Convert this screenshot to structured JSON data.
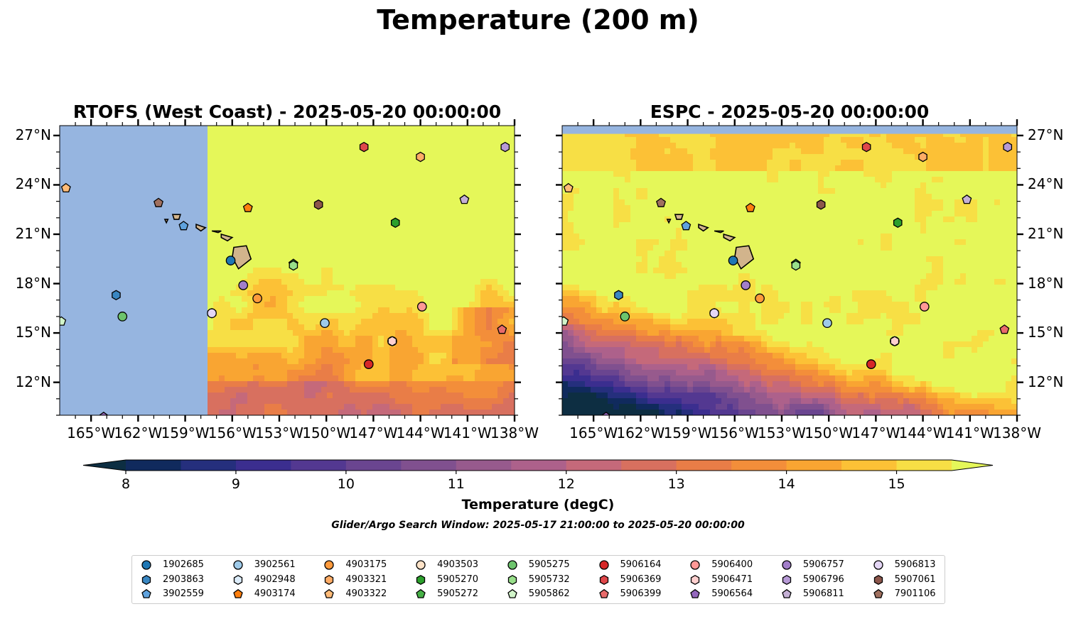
{
  "figure": {
    "title": "Temperature (200 m)",
    "search_window": "Glider/Argo Search Window: 2025-05-17 21:00:00 to 2025-05-20 00:00:00"
  },
  "panels": [
    {
      "title": "RTOFS (West Coast) - 2025-05-20 00:00:00",
      "land_mask_west_of": -157.5
    },
    {
      "title": "ESPC - 2025-05-20 00:00:00"
    }
  ],
  "map": {
    "lon_range": [
      -167.0,
      -138.0
    ],
    "lat_range": [
      10.0,
      27.6
    ],
    "lon_ticks": [
      "165°W",
      "162°W",
      "159°W",
      "156°W",
      "153°W",
      "150°W",
      "147°W",
      "144°W",
      "141°W",
      "138°W"
    ],
    "lat_ticks": [
      "27°N",
      "24°N",
      "21°N",
      "18°N",
      "15°N",
      "12°N"
    ],
    "ocean_fill": "#96b5e0",
    "land_fill": "#d2b48c"
  },
  "colorbar": {
    "label": "Temperature (degC)",
    "min": 8,
    "max": 15.5,
    "step": 0.5,
    "tick_labels": [
      "8",
      "9",
      "10",
      "11",
      "12",
      "13",
      "14",
      "15"
    ],
    "colors": [
      "#0d2e42",
      "#102a5d",
      "#252f7d",
      "#3b2e8f",
      "#533891",
      "#6a4590",
      "#80508f",
      "#975a8d",
      "#ad618b",
      "#c5697a",
      "#d8705f",
      "#e97d47",
      "#f38e3a",
      "#f9a532",
      "#fcc136",
      "#f7df45",
      "#e5f759"
    ],
    "extend": "both"
  },
  "legend": {
    "floats": [
      {
        "id": "1902685",
        "marker": "circle",
        "color": "#1f77b4"
      },
      {
        "id": "2903863",
        "marker": "hexagon",
        "color": "#3a87c2"
      },
      {
        "id": "3902559",
        "marker": "pentagon",
        "color": "#5fa2dd"
      },
      {
        "id": "3902561",
        "marker": "circle",
        "color": "#9ecae9"
      },
      {
        "id": "4902948",
        "marker": "hexagon",
        "color": "#dcecfa"
      },
      {
        "id": "4903174",
        "marker": "pentagon",
        "color": "#ff7f0e"
      },
      {
        "id": "4903175",
        "marker": "circle",
        "color": "#ff9a3c"
      },
      {
        "id": "4903321",
        "marker": "hexagon",
        "color": "#ffac66"
      },
      {
        "id": "4903322",
        "marker": "pentagon",
        "color": "#ffbb78"
      },
      {
        "id": "4903503",
        "marker": "circle",
        "color": "#ffe3c8"
      },
      {
        "id": "5905270",
        "marker": "hexagon",
        "color": "#2ca02c"
      },
      {
        "id": "5905272",
        "marker": "pentagon",
        "color": "#46b046"
      },
      {
        "id": "5905275",
        "marker": "circle",
        "color": "#6dc46d"
      },
      {
        "id": "5905732",
        "marker": "hexagon",
        "color": "#98df8a"
      },
      {
        "id": "5905862",
        "marker": "pentagon",
        "color": "#d2f5ca"
      },
      {
        "id": "5906164",
        "marker": "circle",
        "color": "#d62728"
      },
      {
        "id": "5906369",
        "marker": "hexagon",
        "color": "#e0474a"
      },
      {
        "id": "5906399",
        "marker": "pentagon",
        "color": "#e86b6b"
      },
      {
        "id": "5906400",
        "marker": "circle",
        "color": "#ff9896"
      },
      {
        "id": "5906471",
        "marker": "hexagon",
        "color": "#ffd0cf"
      },
      {
        "id": "5906564",
        "marker": "pentagon",
        "color": "#9467bd"
      },
      {
        "id": "5906757",
        "marker": "circle",
        "color": "#a27ec9"
      },
      {
        "id": "5906796",
        "marker": "hexagon",
        "color": "#b79ad6"
      },
      {
        "id": "5906811",
        "marker": "pentagon",
        "color": "#c5b0d5"
      },
      {
        "id": "5906813",
        "marker": "circle",
        "color": "#e4d6f5"
      },
      {
        "id": "5907061",
        "marker": "hexagon",
        "color": "#8c564b"
      },
      {
        "id": "7901106",
        "marker": "pentagon",
        "color": "#a0705f"
      }
    ]
  },
  "observations": [
    {
      "id": "1902685",
      "lon": -156.1,
      "lat": 19.4
    },
    {
      "id": "2903863",
      "lon": -163.4,
      "lat": 17.3
    },
    {
      "id": "3902559",
      "lon": -159.1,
      "lat": 21.5
    },
    {
      "id": "3902561",
      "lon": -150.1,
      "lat": 15.6
    },
    {
      "id": "4902948",
      "lon": -157.3,
      "lat": 16.2
    },
    {
      "id": "4903174",
      "lon": -155.0,
      "lat": 22.6
    },
    {
      "id": "4903175",
      "lon": -154.4,
      "lat": 17.1
    },
    {
      "id": "4903321",
      "lon": -144.0,
      "lat": 25.7
    },
    {
      "id": "4903322",
      "lon": -166.6,
      "lat": 23.8
    },
    {
      "id": "4903503",
      "lon": -145.8,
      "lat": 14.5
    },
    {
      "id": "5905270",
      "lon": -145.6,
      "lat": 21.7
    },
    {
      "id": "5905272",
      "lon": -152.1,
      "lat": 19.2
    },
    {
      "id": "5905275",
      "lon": -163.0,
      "lat": 16.0
    },
    {
      "id": "5905732",
      "lon": -152.1,
      "lat": 19.1
    },
    {
      "id": "5905862",
      "lon": -166.9,
      "lat": 15.7
    },
    {
      "id": "5906164",
      "lon": -147.3,
      "lat": 13.1
    },
    {
      "id": "5906369",
      "lon": -147.6,
      "lat": 26.3
    },
    {
      "id": "5906399",
      "lon": -138.8,
      "lat": 15.2
    },
    {
      "id": "5906400",
      "lon": -143.9,
      "lat": 16.6
    },
    {
      "id": "5906471",
      "lon": -145.8,
      "lat": 14.5
    },
    {
      "id": "5906564",
      "lon": -164.2,
      "lat": 9.9
    },
    {
      "id": "5906757",
      "lon": -155.3,
      "lat": 17.9
    },
    {
      "id": "5906796",
      "lon": -138.6,
      "lat": 26.3
    },
    {
      "id": "5906811",
      "lon": -141.2,
      "lat": 23.1
    },
    {
      "id": "5906813",
      "lon": -157.3,
      "lat": 16.2
    },
    {
      "id": "5907061",
      "lon": -150.5,
      "lat": 22.8
    },
    {
      "id": "7901106",
      "lon": -160.7,
      "lat": 22.9
    }
  ]
}
